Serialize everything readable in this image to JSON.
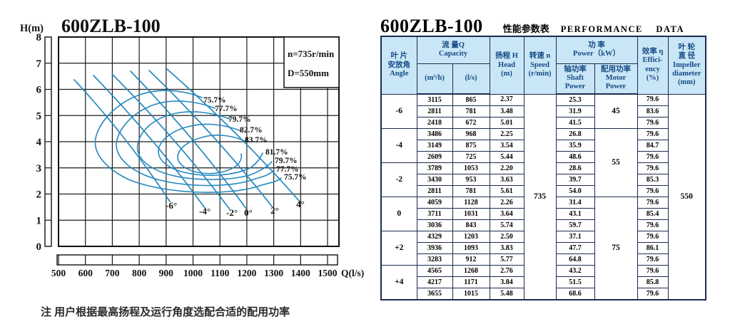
{
  "chart": {
    "title": "600ZLB-100",
    "y_axis_label": "H(m)",
    "x_axis_label": "Q(l/s)",
    "legend_line1": "n=735r/min",
    "legend_line2": "D=550mm",
    "y_ticks": [
      "0",
      "1",
      "2",
      "3",
      "4",
      "5",
      "6",
      "7",
      "8"
    ],
    "x_ticks": [
      "500",
      "600",
      "700",
      "800",
      "900",
      "1000",
      "1100",
      "1200",
      "1300",
      "1400",
      "1500"
    ],
    "efficiency_labels": [
      "75.7%",
      "77.7%",
      "79.7%",
      "82.7%",
      "83.7%",
      "81.7%",
      "79.7%",
      "77.7%",
      "75.7%"
    ],
    "angle_labels": [
      "-6°",
      "-4°",
      "-2°",
      "0°",
      "2°",
      "4°"
    ],
    "curve_color": "#2489bf",
    "grid_color": "#1c1c1c"
  },
  "chart_data": {
    "type": "line",
    "title": "600ZLB-100",
    "xlabel": "Q(l/s)",
    "ylabel": "H(m)",
    "xlim": [
      500,
      1540
    ],
    "ylim": [
      0,
      8
    ],
    "x_ticks": [
      500,
      600,
      700,
      800,
      900,
      1000,
      1100,
      1200,
      1300,
      1400,
      1500
    ],
    "y_ticks": [
      0,
      1,
      2,
      3,
      4,
      5,
      6,
      7,
      8
    ],
    "annotations": [
      "n=735r/min",
      "D=550mm"
    ],
    "series": [
      {
        "name": "-6°",
        "points_q_lps_vs_h_m": [
          [
            865,
            2.37
          ],
          [
            781,
            3.48
          ],
          [
            672,
            5.01
          ]
        ]
      },
      {
        "name": "-4°",
        "points_q_lps_vs_h_m": [
          [
            968,
            2.25
          ],
          [
            875,
            3.54
          ],
          [
            725,
            5.44
          ]
        ]
      },
      {
        "name": "-2°",
        "points_q_lps_vs_h_m": [
          [
            1053,
            2.2
          ],
          [
            953,
            3.63
          ],
          [
            781,
            5.61
          ]
        ]
      },
      {
        "name": "0°",
        "points_q_lps_vs_h_m": [
          [
            1128,
            2.26
          ],
          [
            1031,
            3.64
          ],
          [
            843,
            5.74
          ]
        ]
      },
      {
        "name": "+2°",
        "points_q_lps_vs_h_m": [
          [
            1203,
            2.5
          ],
          [
            1093,
            3.83
          ],
          [
            912,
            5.77
          ]
        ]
      },
      {
        "name": "+4°",
        "points_q_lps_vs_h_m": [
          [
            1268,
            2.76
          ],
          [
            1171,
            3.84
          ],
          [
            1015,
            5.48
          ]
        ]
      }
    ],
    "efficiency_contours_pct": [
      75.7,
      77.7,
      79.7,
      82.7,
      83.7,
      81.7
    ],
    "legend_position": "top-right",
    "grid": true
  },
  "table": {
    "model": "600ZLB-100",
    "subtitle_cn": "性能参数表",
    "subtitle_en": "PERFORMANCE DATA",
    "headers": {
      "angle": "叶 片\n安放角\nAngle",
      "capacity": "流 量Q\nCapacity",
      "capacity_m3h": "(m³/h)",
      "capacity_ls": "(l/s)",
      "head": "扬程 H\nHead\n(m)",
      "speed": "转速 n\nSpeed\n(r/min)",
      "power": "功 率\nPower（kW）",
      "shaft": "轴功率\nShaft\nPower",
      "motor": "配用功率\nMotor\nPower",
      "efficiency": "效率 η\nEffici-\nency\n(%)",
      "impeller": "叶 轮\n直 径\nImpeller\ndiameter\n(mm)"
    },
    "speed_value": "735",
    "impeller_value": "550",
    "motor_powers": [
      {
        "value": "45",
        "rows": 3,
        "group": 0
      },
      {
        "value": "55",
        "rows": 6,
        "group": 1
      },
      {
        "value": "75",
        "rows": 9,
        "group": 3
      }
    ],
    "groups": [
      {
        "angle": "-6",
        "rows": [
          [
            "3115",
            "865",
            "2.37",
            "25.3",
            "79.6"
          ],
          [
            "2811",
            "781",
            "3.48",
            "31.9",
            "83.6"
          ],
          [
            "2418",
            "672",
            "5.01",
            "41.5",
            "79.6"
          ]
        ]
      },
      {
        "angle": "-4",
        "rows": [
          [
            "3486",
            "968",
            "2.25",
            "26.8",
            "79.6"
          ],
          [
            "3149",
            "875",
            "3.54",
            "35.9",
            "84.7"
          ],
          [
            "2609",
            "725",
            "5.44",
            "48.6",
            "79.6"
          ]
        ]
      },
      {
        "angle": "-2",
        "rows": [
          [
            "3789",
            "1053",
            "2.20",
            "28.6",
            "79.6"
          ],
          [
            "3430",
            "953",
            "3.63",
            "39.7",
            "85.3"
          ],
          [
            "2811",
            "781",
            "5.61",
            "54.0",
            "79.6"
          ]
        ]
      },
      {
        "angle": "0",
        "rows": [
          [
            "4059",
            "1128",
            "2.26",
            "31.4",
            "79.6"
          ],
          [
            "3711",
            "1031",
            "3.64",
            "43.1",
            "85.4"
          ],
          [
            "3036",
            "843",
            "5.74",
            "59.7",
            "79.6"
          ]
        ]
      },
      {
        "angle": "+2",
        "rows": [
          [
            "4329",
            "1203",
            "2.50",
            "37.1",
            "79.6"
          ],
          [
            "3936",
            "1093",
            "3.83",
            "47.7",
            "86.1"
          ],
          [
            "3283",
            "912",
            "5.77",
            "64.8",
            "79.6"
          ]
        ]
      },
      {
        "angle": "+4",
        "rows": [
          [
            "4565",
            "1268",
            "2.76",
            "43.2",
            "79.6"
          ],
          [
            "4217",
            "1171",
            "3.84",
            "51.5",
            "85.8"
          ],
          [
            "3655",
            "1015",
            "5.48",
            "68.6",
            "79.6"
          ]
        ]
      }
    ]
  },
  "footnote": "注 用户根据最高扬程及运行角度选配合适的配用功率"
}
